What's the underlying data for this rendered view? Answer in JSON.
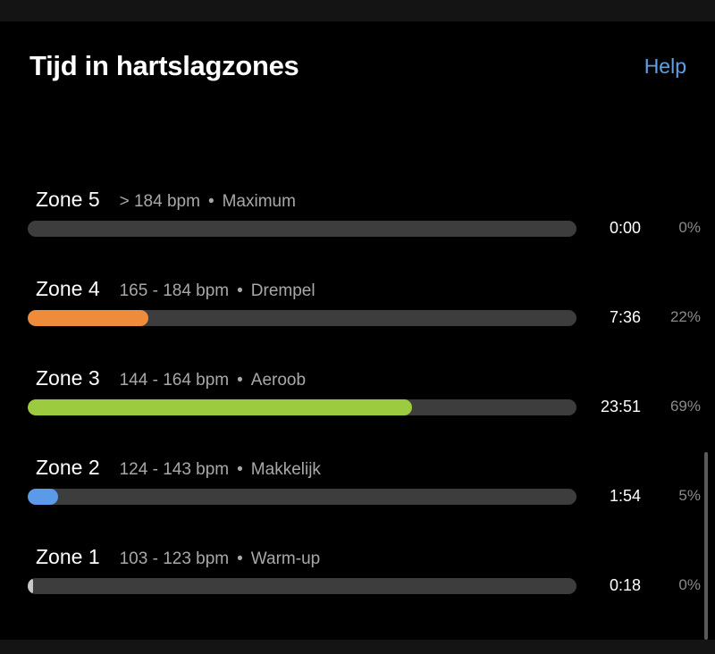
{
  "header": {
    "title": "Tijd in hartslagzones",
    "help_label": "Help"
  },
  "colors": {
    "background": "#000000",
    "track": "#3d3d3d",
    "help_link": "#5ea0e6"
  },
  "zones": [
    {
      "name": "Zone 5",
      "range": "> 184 bpm",
      "separator": "•",
      "label": "Maximum",
      "time": "0:00",
      "percent": "0%",
      "fill_fraction": 0.0,
      "color": "#8a8a8a"
    },
    {
      "name": "Zone 4",
      "range": "165 - 184 bpm",
      "separator": "•",
      "label": "Drempel",
      "time": "7:36",
      "percent": "22%",
      "fill_fraction": 0.22,
      "color": "#ef8c3b"
    },
    {
      "name": "Zone 3",
      "range": "144 - 164 bpm",
      "separator": "•",
      "label": "Aeroob",
      "time": "23:51",
      "percent": "69%",
      "fill_fraction": 0.7,
      "color": "#9dcb3f"
    },
    {
      "name": "Zone 2",
      "range": "124 - 143 bpm",
      "separator": "•",
      "label": "Makkelijk",
      "time": "1:54",
      "percent": "5%",
      "fill_fraction": 0.055,
      "color": "#5b9ae8"
    },
    {
      "name": "Zone 1",
      "range": "103 - 123 bpm",
      "separator": "•",
      "label": "Warm-up",
      "time": "0:18",
      "percent": "0%",
      "fill_fraction": 0.01,
      "color": "#c8c8c8"
    }
  ]
}
